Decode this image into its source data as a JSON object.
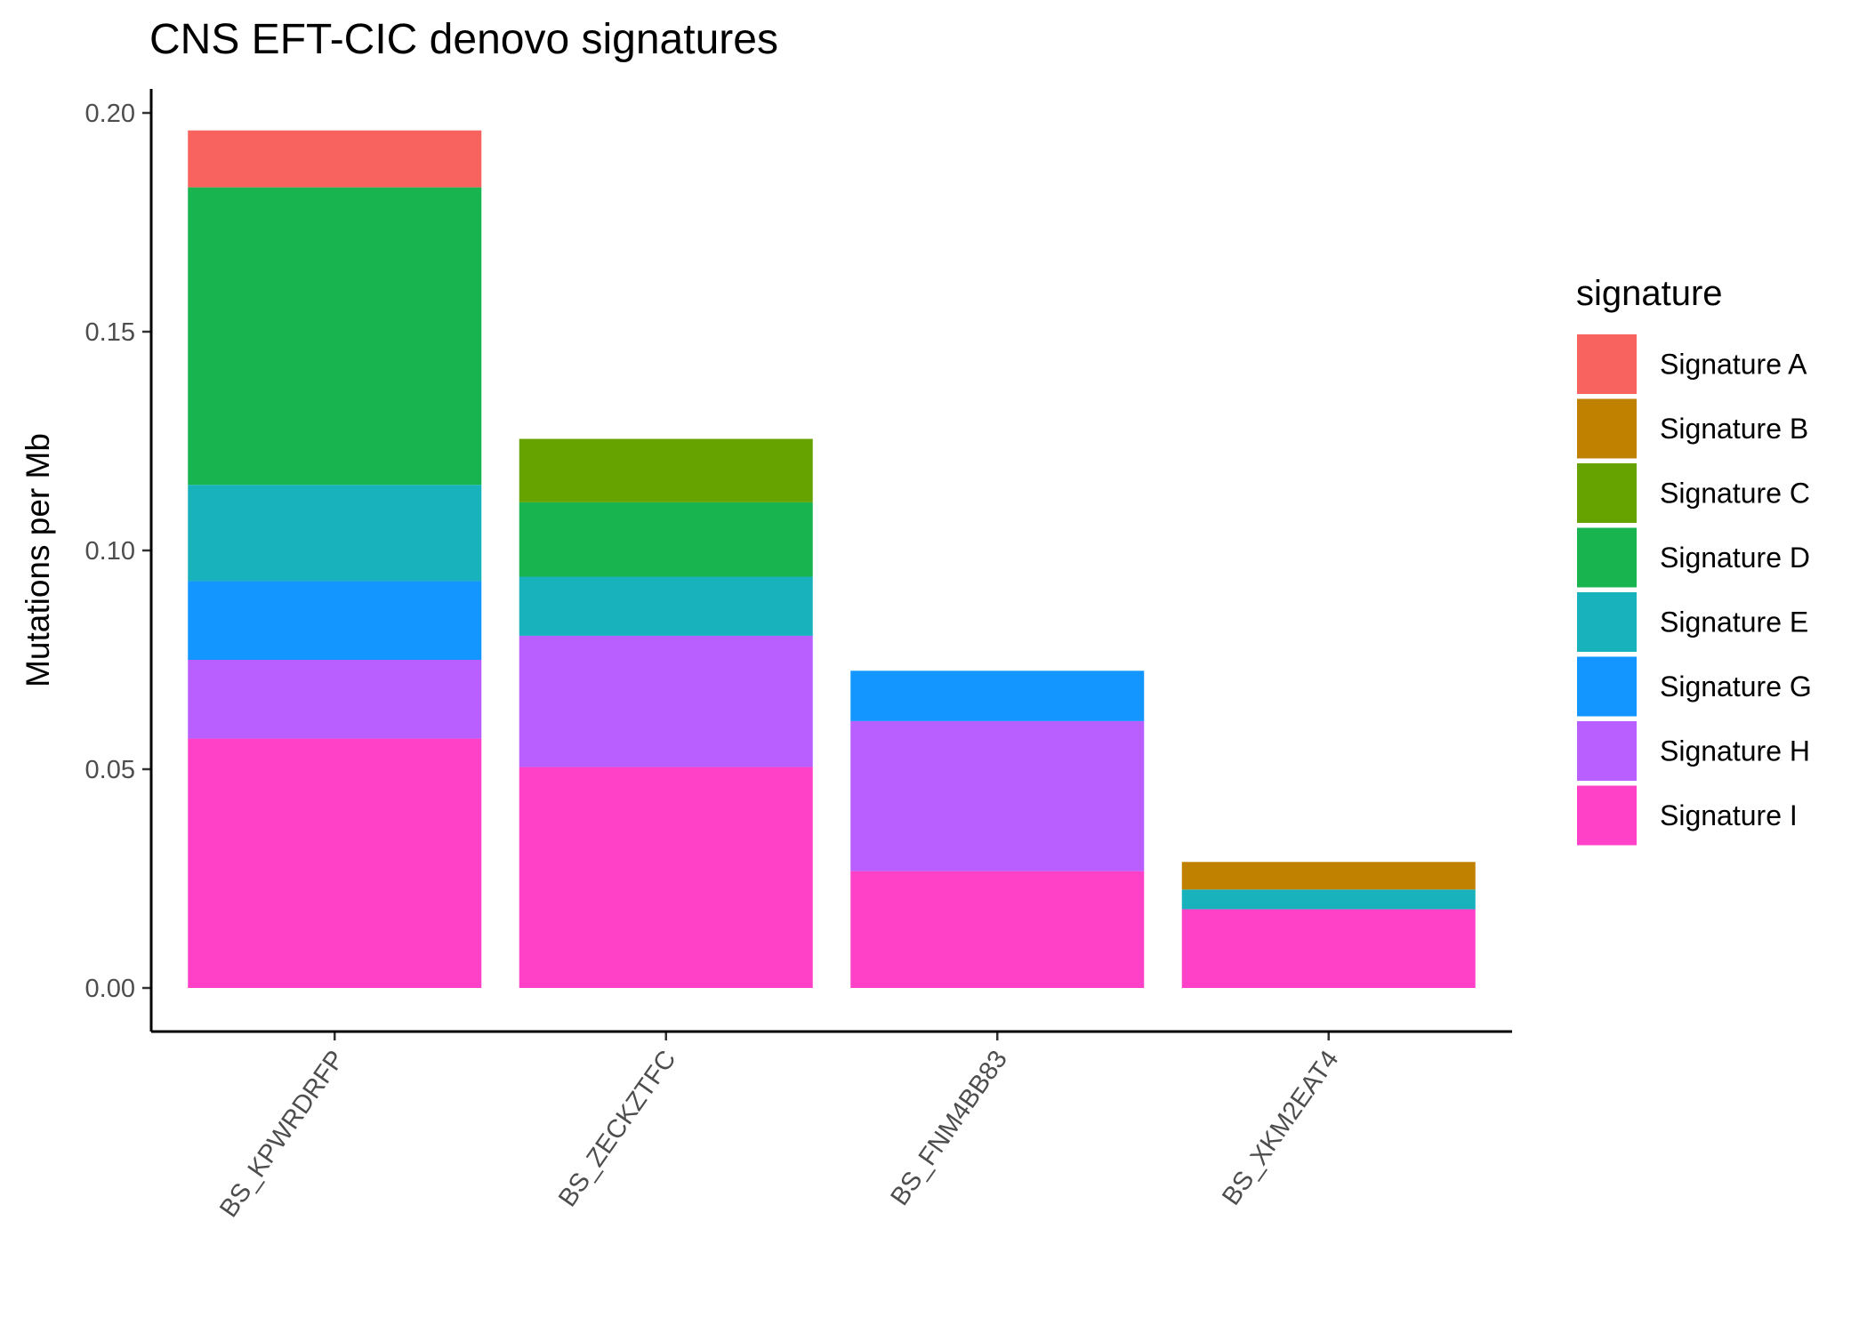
{
  "chart_data": {
    "type": "bar",
    "stacked": true,
    "title": "CNS EFT-CIC denovo signatures",
    "xlabel": "",
    "ylabel": "Mutations per Mb",
    "ylim": [
      0,
      0.2
    ],
    "yticks": [
      "0.00",
      "0.05",
      "0.10",
      "0.15",
      "0.20"
    ],
    "categories": [
      "BS_KPWRDRFP",
      "BS_ZECKZTFC",
      "BS_FNM4BB83",
      "BS_XKM2EAT4"
    ],
    "grid": false,
    "legend": {
      "title": "signature",
      "position": "right"
    },
    "series": [
      {
        "name": "Signature I",
        "color": "#FF41C8",
        "values": [
          0.057,
          0.0505,
          0.0267,
          0.018
        ]
      },
      {
        "name": "Signature H",
        "color": "#B95FFF",
        "values": [
          0.018,
          0.03,
          0.0343,
          0
        ]
      },
      {
        "name": "Signature G",
        "color": "#1396FF",
        "values": [
          0.018,
          0,
          0.0115,
          0
        ]
      },
      {
        "name": "Signature E",
        "color": "#17B2BB",
        "values": [
          0.022,
          0.0135,
          0,
          0.0045
        ]
      },
      {
        "name": "Signature D",
        "color": "#18B450",
        "values": [
          0.068,
          0.017,
          0,
          0
        ]
      },
      {
        "name": "Signature C",
        "color": "#67A300",
        "values": [
          0,
          0.0145,
          0,
          0
        ]
      },
      {
        "name": "Signature B",
        "color": "#C08000",
        "values": [
          0,
          0,
          0,
          0.0063
        ]
      },
      {
        "name": "Signature A",
        "color": "#F8635F",
        "values": [
          0.013,
          0,
          0,
          0
        ]
      }
    ],
    "legend_order": [
      "Signature A",
      "Signature B",
      "Signature C",
      "Signature D",
      "Signature E",
      "Signature G",
      "Signature H",
      "Signature I"
    ]
  }
}
